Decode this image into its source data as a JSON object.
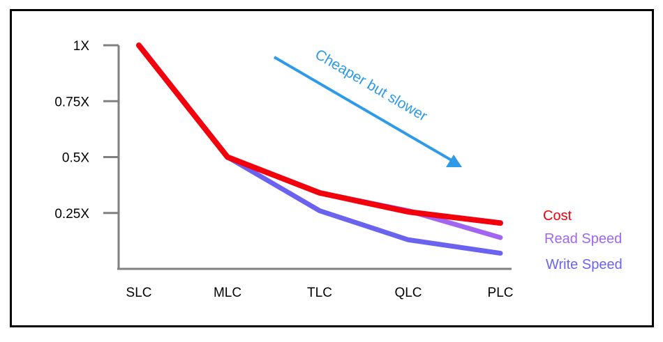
{
  "chart_data": {
    "type": "line",
    "title": "",
    "xlabel": "",
    "ylabel": "",
    "categories": [
      "SLC",
      "MLC",
      "TLC",
      "QLC",
      "PLC"
    ],
    "y_ticks": [
      {
        "value": 1.0,
        "label": "1X"
      },
      {
        "value": 0.75,
        "label": "0.75X"
      },
      {
        "value": 0.5,
        "label": "0.5X"
      },
      {
        "value": 0.25,
        "label": "0.25X"
      }
    ],
    "ylim": [
      0,
      1
    ],
    "grid": false,
    "legend_placement": "right",
    "series": [
      {
        "name": "Write Speed",
        "color": "#6b63f0",
        "values": [
          1.0,
          0.5,
          0.26,
          0.13,
          0.07
        ]
      },
      {
        "name": "Read Speed",
        "color": "#a066f2",
        "values": [
          1.0,
          0.5,
          0.34,
          0.26,
          0.14
        ]
      },
      {
        "name": "Cost",
        "color": "#f2000b",
        "values": [
          1.0,
          0.5,
          0.34,
          0.255,
          0.205
        ]
      }
    ],
    "annotation": {
      "text": "Cheaper but slower",
      "color": "#2f9be8"
    }
  }
}
